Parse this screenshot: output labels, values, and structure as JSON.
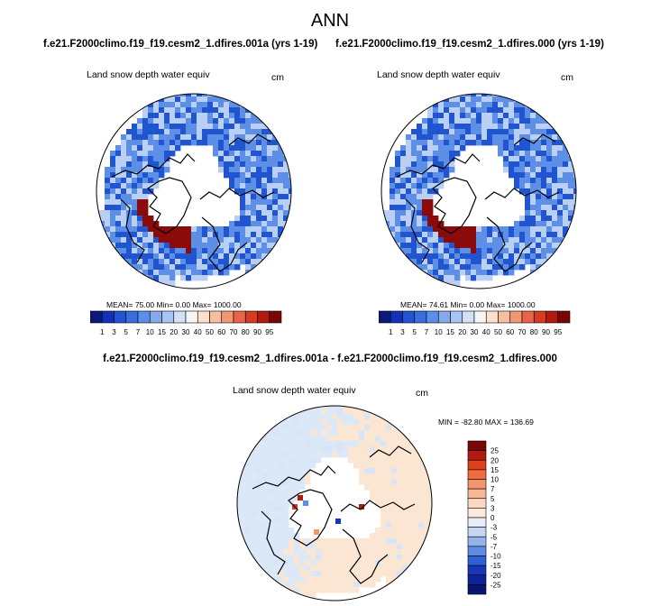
{
  "main_title": "ANN",
  "case_titles": {
    "left": "f.e21.F2000climo.f19_f19.cesm2_1.dfires.001a (yrs 1-19)",
    "right": "f.e21.F2000climo.f19_f19.cesm2_1.dfires.000 (yrs 1-19)"
  },
  "panels": [
    {
      "variable": "Land snow depth water equiv",
      "units": "cm",
      "stats": "MEAN=  75.00  Min=   0.00  Max= 1000.00"
    },
    {
      "variable": "Land snow depth water equiv",
      "units": "cm",
      "stats": "MEAN=  74.61  Min=   0.00  Max= 1000.00"
    }
  ],
  "diff_panel": {
    "title": "f.e21.F2000climo.f19_f19.cesm2_1.dfires.001a - f.e21.F2000climo.f19_f19.cesm2_1.dfires.000",
    "variable": "Land snow depth water equiv",
    "units": "cm",
    "stats": "MIN = -82.80 MAX = 136.69"
  },
  "colors": {
    "land_low": "#2155d0",
    "land_mid": "#5d8fe6",
    "land_light": "#b9d0f4",
    "snow_max": "#8b0a0a",
    "ocean": "#ffffff",
    "diff_pos": "#fbe6d3",
    "diff_neg": "#dbe8f8"
  },
  "chart_data": [
    {
      "type": "heatmap",
      "projection": "north polar stereographic",
      "title": "f.e21.F2000climo.f19_f19.cesm2_1.dfires.001a (yrs 1-19)",
      "variable": "Land snow depth water equiv",
      "units": "cm",
      "mean": 75.0,
      "min": 0.0,
      "max": 1000.0,
      "colorbar_levels": [
        1,
        3,
        5,
        7,
        10,
        15,
        20,
        30,
        40,
        50,
        60,
        70,
        80,
        90,
        95
      ],
      "colorbar_colors": [
        "#0a1a7a",
        "#1230b8",
        "#2155d0",
        "#3a6ee0",
        "#5d8fe6",
        "#84aaee",
        "#aac4f3",
        "#d2e0f8",
        "#f6f6f6",
        "#fbe1cb",
        "#f7bfa0",
        "#f29678",
        "#e66548",
        "#d53a22",
        "#b01a10",
        "#7a0606"
      ]
    },
    {
      "type": "heatmap",
      "projection": "north polar stereographic",
      "title": "f.e21.F2000climo.f19_f19.cesm2_1.dfires.000 (yrs 1-19)",
      "variable": "Land snow depth water equiv",
      "units": "cm",
      "mean": 74.61,
      "min": 0.0,
      "max": 1000.0,
      "colorbar_levels": [
        1,
        3,
        5,
        7,
        10,
        15,
        20,
        30,
        40,
        50,
        60,
        70,
        80,
        90,
        95
      ],
      "colorbar_colors": [
        "#0a1a7a",
        "#1230b8",
        "#2155d0",
        "#3a6ee0",
        "#5d8fe6",
        "#84aaee",
        "#aac4f3",
        "#d2e0f8",
        "#f6f6f6",
        "#fbe1cb",
        "#f7bfa0",
        "#f29678",
        "#e66548",
        "#d53a22",
        "#b01a10",
        "#7a0606"
      ]
    },
    {
      "type": "heatmap",
      "projection": "north polar stereographic",
      "title": "f.e21.F2000climo.f19_f19.cesm2_1.dfires.001a - f.e21.F2000climo.f19_f19.cesm2_1.dfires.000",
      "variable": "Land snow depth water equiv",
      "units": "cm",
      "min": -82.8,
      "max": 136.69,
      "colorbar_levels": [
        25,
        20,
        15,
        10,
        7,
        5,
        3,
        0,
        -3,
        -5,
        -7,
        -10,
        -15,
        -20,
        -25
      ],
      "colorbar_colors": [
        "#7a0606",
        "#b01a10",
        "#e0401c",
        "#f26a3e",
        "#f5946a",
        "#f8b896",
        "#fbd8c0",
        "#fcebdc",
        "#e6eefa",
        "#c5d6f4",
        "#94b4ec",
        "#5d8ce2",
        "#2f62d6",
        "#1638b8",
        "#0d2296",
        "#081670"
      ]
    }
  ]
}
